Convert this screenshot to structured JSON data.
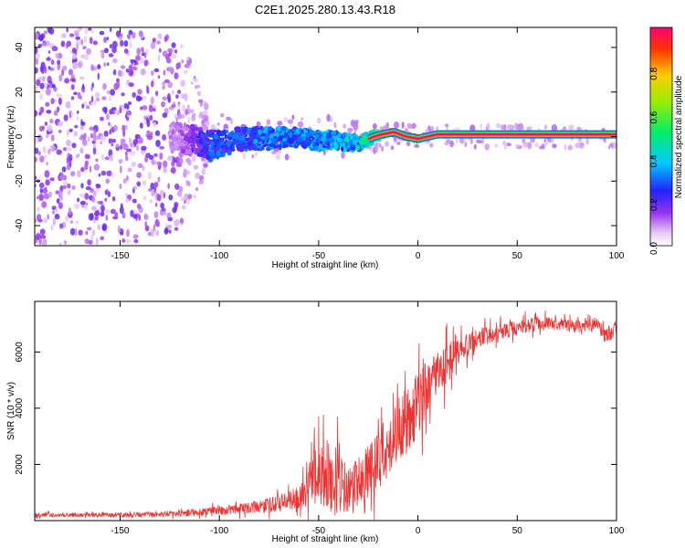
{
  "title": "C2E1.2025.280.13.43.R18",
  "chart_data": [
    {
      "type": "heatmap",
      "xlabel": "Height of straight line (km)",
      "ylabel": "Frequency (Hz)",
      "xlim": [
        -193,
        100
      ],
      "ylim": [
        -49,
        49
      ],
      "xticks": [
        "-150",
        "-100",
        "-50",
        "0",
        "50",
        "100"
      ],
      "xtick_values": [
        -150,
        -100,
        -50,
        0,
        50,
        100
      ],
      "yticks": [
        "-40",
        "-20",
        "0",
        "20",
        "40"
      ],
      "ytick_values": [
        -40,
        -20,
        0,
        20,
        40
      ],
      "colorbar": {
        "label": "Normalized spectral amplitude",
        "range": [
          0,
          1
        ],
        "ticks": [
          "0.0",
          "0.2",
          "0.4",
          "0.6",
          "0.8"
        ],
        "tick_values": [
          0,
          0.2,
          0.4,
          0.6,
          0.8
        ]
      },
      "signal_trace": {
        "heights_km": [
          -193,
          -150,
          -120,
          -105,
          -90,
          -75,
          -60,
          -50,
          -40,
          -30,
          -22,
          -18,
          -12,
          -6,
          0,
          5,
          10,
          40,
          70,
          100
        ],
        "frequency_hz": [
          0,
          0,
          0,
          -4,
          -1,
          -1,
          0,
          -2,
          -2,
          -3,
          0,
          1,
          2,
          0,
          -1,
          0,
          1,
          1,
          1,
          1
        ],
        "amplitude": [
          0.05,
          0.1,
          0.12,
          0.3,
          0.3,
          0.35,
          0.35,
          0.38,
          0.4,
          0.45,
          0.55,
          0.7,
          0.9,
          0.95,
          0.9,
          0.95,
          1.0,
          1.0,
          1.0,
          1.0
        ],
        "spread_hz": [
          45,
          45,
          40,
          8,
          6,
          6,
          5,
          5,
          5,
          4,
          3,
          2,
          1.5,
          1.5,
          1.5,
          1,
          1,
          1,
          1,
          1
        ]
      }
    },
    {
      "type": "line",
      "xlabel": "Height of straight line (km)",
      "ylabel": "SNR (10 * v/v)",
      "xlim": [
        -193,
        100
      ],
      "ylim": [
        0,
        7800
      ],
      "xticks": [
        "-150",
        "-100",
        "-50",
        "0",
        "50",
        "100"
      ],
      "xtick_values": [
        -150,
        -100,
        -50,
        0,
        50,
        100
      ],
      "yticks": [
        "2000",
        "4000",
        "6000"
      ],
      "ytick_values": [
        2000,
        4000,
        6000
      ],
      "color": "#ee3333",
      "series": [
        {
          "name": "SNR",
          "envelope_x": [
            -193,
            -150,
            -120,
            -100,
            -85,
            -75,
            -65,
            -55,
            -50,
            -45,
            -40,
            -35,
            -30,
            -25,
            -20,
            -15,
            -10,
            -5,
            0,
            5,
            10,
            15,
            20,
            25,
            30,
            40,
            50,
            60,
            70,
            80,
            90,
            95,
            100
          ],
          "envelope_mean": [
            200,
            200,
            250,
            350,
            450,
            550,
            700,
            1100,
            1700,
            1500,
            1300,
            1200,
            1400,
            1700,
            2100,
            2700,
            3200,
            3600,
            4200,
            4700,
            5200,
            5600,
            6000,
            6300,
            6500,
            6700,
            6900,
            7000,
            7000,
            6900,
            7000,
            6500,
            6900
          ],
          "envelope_noise": [
            80,
            80,
            120,
            180,
            220,
            300,
            400,
            700,
            1500,
            1500,
            1300,
            1000,
            1000,
            1100,
            1200,
            1300,
            1300,
            1300,
            1300,
            1100,
            900,
            800,
            600,
            500,
            400,
            350,
            300,
            300,
            250,
            250,
            250,
            350,
            300
          ]
        }
      ]
    }
  ]
}
